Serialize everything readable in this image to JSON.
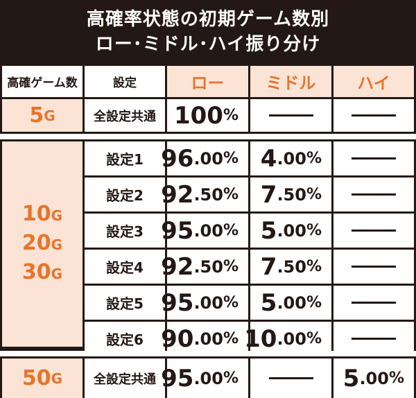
{
  "title": {
    "line1": "高確率状態の初期ゲーム数別",
    "line2": "ロー･ミドル･ハイ振り分け"
  },
  "headers": {
    "games": "高確ゲーム数",
    "setting": "設定",
    "low": "ロー",
    "middle": "ミドル",
    "high": "ハイ"
  },
  "group1": {
    "games": "5",
    "unit": "G",
    "setting": "全設定共通",
    "low": {
      "int": "100",
      "dec": "",
      "pct": "%"
    }
  },
  "group2": {
    "games": [
      {
        "num": "10",
        "unit": "G"
      },
      {
        "num": "20",
        "unit": "G"
      },
      {
        "num": "30",
        "unit": "G"
      }
    ],
    "rows": [
      {
        "setting": "設定1",
        "low_int": "96",
        "low_dec": ".00",
        "mid_int": "4",
        "mid_dec": ".00",
        "pct": "%"
      },
      {
        "setting": "設定2",
        "low_int": "92",
        "low_dec": ".50",
        "mid_int": "7",
        "mid_dec": ".50",
        "pct": "%"
      },
      {
        "setting": "設定3",
        "low_int": "95",
        "low_dec": ".00",
        "mid_int": "5",
        "mid_dec": ".00",
        "pct": "%"
      },
      {
        "setting": "設定4",
        "low_int": "92",
        "low_dec": ".50",
        "mid_int": "7",
        "mid_dec": ".50",
        "pct": "%"
      },
      {
        "setting": "設定5",
        "low_int": "95",
        "low_dec": ".00",
        "mid_int": "5",
        "mid_dec": ".00",
        "pct": "%"
      },
      {
        "setting": "設定6",
        "low_int": "90",
        "low_dec": ".00",
        "mid_int": "10",
        "mid_dec": ".00",
        "pct": "%"
      }
    ]
  },
  "group3": {
    "games": "50",
    "unit": "G",
    "setting": "全設定共通",
    "low": {
      "int": "95",
      "dec": ".00",
      "pct": "%"
    },
    "high": {
      "int": "5",
      "dec": ".00",
      "pct": "%"
    }
  },
  "colors": {
    "dark": "#231815",
    "peach": "#fbe4d5",
    "orange": "#e8742a"
  }
}
